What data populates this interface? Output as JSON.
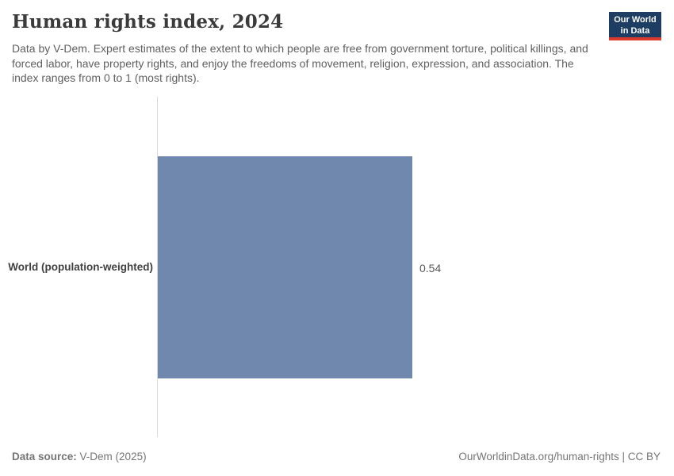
{
  "header": {
    "title": "Human rights index, 2024",
    "subtitle": "Data by V-Dem. Expert estimates of the extent to which people are free from government torture, political killings, and forced labor, have property rights, and enjoy the freedoms of movement, religion, expression, and association. The index ranges from 0 to 1 (most rights).",
    "logo": {
      "line1": "Our World",
      "line2": "in Data",
      "bg_color": "#1d3d63",
      "accent_color": "#dc3a2d"
    }
  },
  "chart_data": {
    "type": "bar",
    "orientation": "horizontal",
    "title": "Human rights index, 2024",
    "categories": [
      "World (population-weighted)"
    ],
    "values": [
      0.54
    ],
    "value_labels": [
      "0.54"
    ],
    "xlim": [
      0,
      1
    ],
    "xlabel": "",
    "ylabel": "",
    "grid": false,
    "legend_position": "none",
    "bar_color": "#7088ad",
    "axis_line_color": "#dadada"
  },
  "footer": {
    "source_label": "Data source:",
    "source_value": "V-Dem (2025)",
    "link_text": "OurWorldinData.org/human-rights | CC BY"
  }
}
